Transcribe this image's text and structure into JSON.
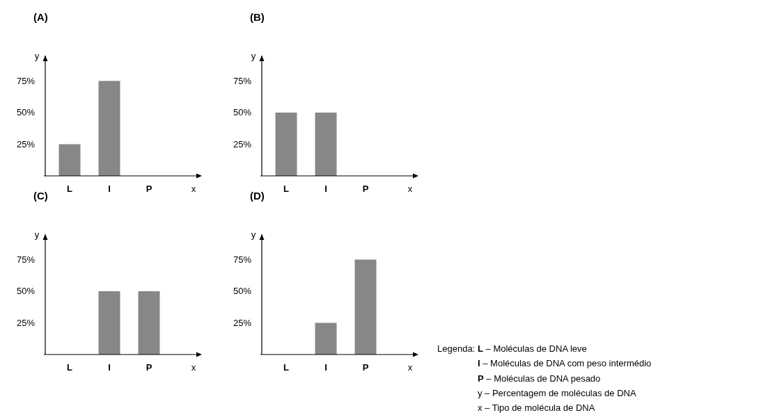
{
  "chart_data": [
    {
      "type": "bar",
      "title": "(A)",
      "xlabel": "x",
      "ylabel": "y",
      "categories": [
        "L",
        "I",
        "P"
      ],
      "values": [
        25,
        75,
        0
      ],
      "color": "#878787",
      "ylim": [
        0,
        95
      ],
      "yticks": [
        {
          "value": 25,
          "label": "25%"
        },
        {
          "value": 50,
          "label": "50%"
        },
        {
          "value": 75,
          "label": "75%"
        }
      ],
      "grid": false
    },
    {
      "type": "bar",
      "title": "(B)",
      "xlabel": "x",
      "ylabel": "y",
      "categories": [
        "L",
        "I",
        "P"
      ],
      "values": [
        50,
        50,
        0
      ],
      "color": "#878787",
      "ylim": [
        0,
        95
      ],
      "yticks": [
        {
          "value": 25,
          "label": "25%"
        },
        {
          "value": 50,
          "label": "50%"
        },
        {
          "value": 75,
          "label": "75%"
        }
      ],
      "grid": false
    },
    {
      "type": "bar",
      "title": "(C)",
      "xlabel": "x",
      "ylabel": "y",
      "categories": [
        "L",
        "I",
        "P"
      ],
      "values": [
        0,
        50,
        50
      ],
      "color": "#878787",
      "ylim": [
        0,
        95
      ],
      "yticks": [
        {
          "value": 25,
          "label": "25%"
        },
        {
          "value": 50,
          "label": "50%"
        },
        {
          "value": 75,
          "label": "75%"
        }
      ],
      "grid": false
    },
    {
      "type": "bar",
      "title": "(D)",
      "xlabel": "x",
      "ylabel": "y",
      "categories": [
        "L",
        "I",
        "P"
      ],
      "values": [
        0,
        25,
        75
      ],
      "color": "#878787",
      "ylim": [
        0,
        95
      ],
      "yticks": [
        {
          "value": 25,
          "label": "25%"
        },
        {
          "value": 50,
          "label": "50%"
        },
        {
          "value": 75,
          "label": "75%"
        }
      ],
      "grid": false
    },
    {
      "type": "other",
      "title": "Legenda:",
      "annotations": [
        "L – Moléculas de DNA leve",
        "I – Moléculas de DNA com peso intermédio",
        "P – Moléculas de DNA pesado",
        "y – Percentagem de moléculas de DNA",
        "x – Tipo de molécula de DNA"
      ]
    }
  ]
}
